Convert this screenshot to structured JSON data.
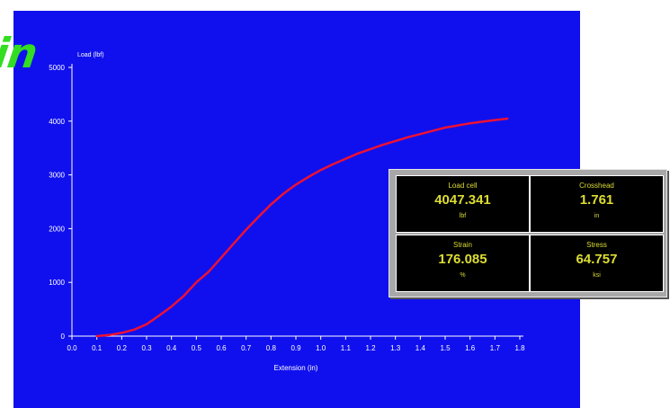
{
  "logo": {
    "fragment_text": "in"
  },
  "colors": {
    "plot_background": "#1010ee",
    "curve": "#ee1133",
    "axis": "#ffffff",
    "readout_text": "#dddd33",
    "readout_background": "#000000",
    "logo": "#33dd22"
  },
  "readouts": [
    {
      "label": "Load cell",
      "value": "4047.341",
      "unit": "lbf"
    },
    {
      "label": "Crosshead",
      "value": "1.761",
      "unit": "in"
    },
    {
      "label": "Strain",
      "value": "176.085",
      "unit": "%"
    },
    {
      "label": "Stress",
      "value": "64.757",
      "unit": "ksi"
    }
  ],
  "chart_data": {
    "type": "line",
    "xlabel": "Extension (in)",
    "ylabel": "Load (lbf)",
    "xlim": [
      0.0,
      1.8
    ],
    "ylim": [
      0,
      5000
    ],
    "x_ticks": [
      "0.0",
      "0.1",
      "0.2",
      "0.3",
      "0.4",
      "0.5",
      "0.6",
      "0.7",
      "0.8",
      "0.9",
      "1.0",
      "1.1",
      "1.2",
      "1.3",
      "1.4",
      "1.5",
      "1.6",
      "1.7",
      "1.8"
    ],
    "y_ticks": [
      "0",
      "1000",
      "2000",
      "3000",
      "4000",
      "5000"
    ],
    "grid": false,
    "series": [
      {
        "x": [
          0.1,
          0.15,
          0.2,
          0.25,
          0.3,
          0.35,
          0.4,
          0.45,
          0.5,
          0.55,
          0.6,
          0.65,
          0.7,
          0.75,
          0.8,
          0.85,
          0.9,
          0.95,
          1.0,
          1.05,
          1.1,
          1.15,
          1.2,
          1.25,
          1.3,
          1.35,
          1.4,
          1.45,
          1.5,
          1.55,
          1.6,
          1.65,
          1.7,
          1.75
        ],
        "y": [
          0,
          20,
          60,
          120,
          220,
          380,
          550,
          750,
          1000,
          1200,
          1460,
          1720,
          1980,
          2220,
          2450,
          2650,
          2820,
          2960,
          3090,
          3200,
          3300,
          3400,
          3480,
          3560,
          3630,
          3700,
          3760,
          3820,
          3880,
          3920,
          3960,
          3990,
          4020,
          4047
        ]
      }
    ]
  }
}
